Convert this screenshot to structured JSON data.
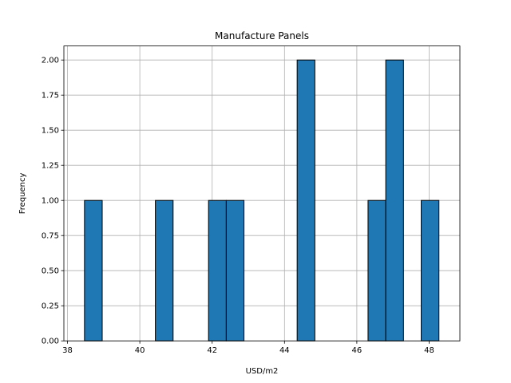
{
  "chart_data": {
    "type": "bar",
    "title": "Manufacture Panels",
    "xlabel": "USD/m2",
    "ylabel": "Frequency",
    "xlim": [
      37.9,
      48.85
    ],
    "ylim": [
      0,
      2.1
    ],
    "grid": true,
    "bar_color": "#1f77b4",
    "edge_color": "#000000",
    "grid_color": "#b0b0b0",
    "bin_width": 0.49,
    "x_ticks": [
      38,
      40,
      42,
      44,
      46,
      48
    ],
    "x_tick_labels": [
      "38",
      "40",
      "42",
      "44",
      "46",
      "48"
    ],
    "y_ticks": [
      0,
      0.25,
      0.5,
      0.75,
      1.0,
      1.25,
      1.5,
      1.75,
      2.0
    ],
    "y_tick_labels": [
      "0.00",
      "0.25",
      "0.50",
      "0.75",
      "1.00",
      "1.25",
      "1.50",
      "1.75",
      "2.00"
    ],
    "bins": [
      {
        "x0": 38.47,
        "value": 1
      },
      {
        "x0": 40.43,
        "value": 1
      },
      {
        "x0": 41.9,
        "value": 1
      },
      {
        "x0": 42.39,
        "value": 1
      },
      {
        "x0": 44.35,
        "value": 2
      },
      {
        "x0": 46.31,
        "value": 1
      },
      {
        "x0": 46.8,
        "value": 2
      },
      {
        "x0": 47.78,
        "value": 1
      }
    ]
  }
}
